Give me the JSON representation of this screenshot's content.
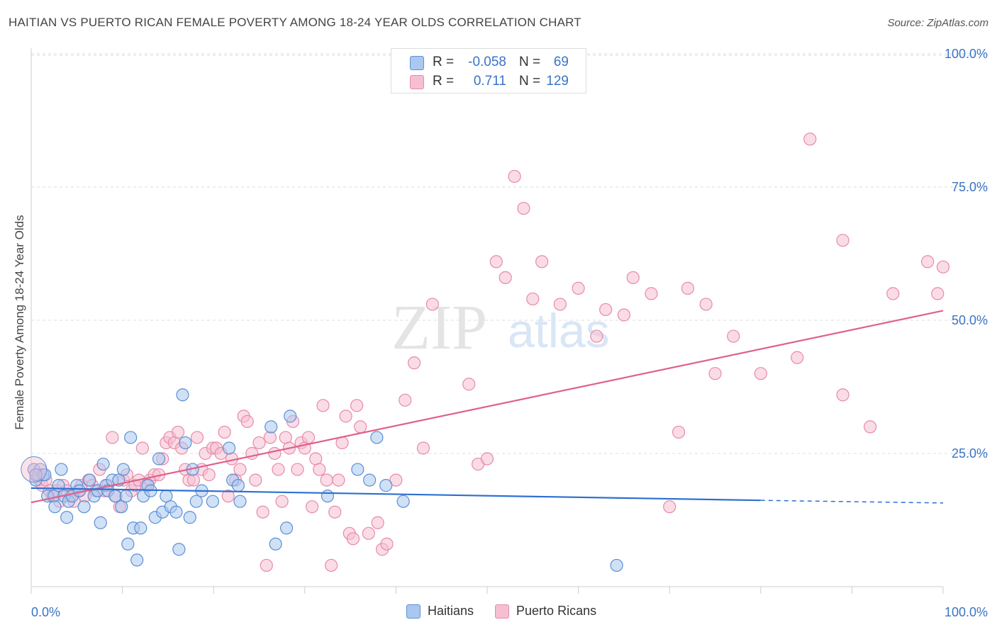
{
  "title": "HAITIAN VS PUERTO RICAN FEMALE POVERTY AMONG 18-24 YEAR OLDS CORRELATION CHART",
  "source": "Source: ZipAtlas.com",
  "watermark": {
    "zip": "ZIP",
    "atlas": "atlas"
  },
  "colors": {
    "haitians_fill": "#aac8ef",
    "haitians_stroke": "#5b8fd6",
    "haitians_line": "#2d6fd1",
    "pr_fill": "#f6bfd1",
    "pr_stroke": "#e88aa8",
    "pr_line": "#e0608a",
    "axis_text": "#3a74c4",
    "grid": "#dddddd"
  },
  "legend_top": {
    "rows": [
      {
        "r_label": "R =",
        "r_value": "-0.058",
        "n_label": "N =",
        "n_value": "69"
      },
      {
        "r_label": "R =",
        "r_value": "0.711",
        "n_label": "N =",
        "n_value": "129"
      }
    ]
  },
  "legend_bottom": {
    "haitians": "Haitians",
    "puerto_ricans": "Puerto Ricans"
  },
  "chart_data": {
    "type": "scatter",
    "ylabel": "Female Poverty Among 18-24 Year Olds",
    "xlabel": "",
    "xlim": [
      0,
      100
    ],
    "ylim": [
      0,
      100
    ],
    "x_tick_labels": [
      "0.0%",
      "100.0%"
    ],
    "y_tick_labels": [
      "25.0%",
      "50.0%",
      "75.0%",
      "100.0%"
    ],
    "y_ticks": [
      25,
      50,
      75,
      100
    ],
    "grid": true,
    "series": [
      {
        "name": "Haitians",
        "points": [
          [
            0.3,
            22
          ],
          [
            0.5,
            20
          ],
          [
            0.8,
            21
          ],
          [
            1.0,
            22
          ],
          [
            1.3,
            21
          ],
          [
            1.5,
            21
          ],
          [
            1.8,
            17
          ],
          [
            2.5,
            17
          ],
          [
            2.6,
            15
          ],
          [
            3.0,
            19
          ],
          [
            3.3,
            22
          ],
          [
            3.6,
            17
          ],
          [
            3.9,
            13
          ],
          [
            4.1,
            16
          ],
          [
            4.5,
            17
          ],
          [
            5.0,
            19
          ],
          [
            5.3,
            18
          ],
          [
            5.8,
            15
          ],
          [
            6.4,
            20
          ],
          [
            6.9,
            17
          ],
          [
            7.3,
            18
          ],
          [
            7.6,
            12
          ],
          [
            7.9,
            23
          ],
          [
            8.2,
            19
          ],
          [
            8.4,
            18
          ],
          [
            8.9,
            20
          ],
          [
            9.2,
            17
          ],
          [
            9.6,
            20
          ],
          [
            9.9,
            15
          ],
          [
            10.1,
            22
          ],
          [
            10.4,
            17
          ],
          [
            10.6,
            8
          ],
          [
            10.9,
            28
          ],
          [
            11.2,
            11
          ],
          [
            11.6,
            5
          ],
          [
            12.0,
            11
          ],
          [
            12.3,
            17
          ],
          [
            12.8,
            19
          ],
          [
            13.1,
            18
          ],
          [
            13.6,
            13
          ],
          [
            14.0,
            24
          ],
          [
            14.4,
            14
          ],
          [
            14.8,
            17
          ],
          [
            15.3,
            15
          ],
          [
            15.9,
            14
          ],
          [
            16.2,
            7
          ],
          [
            16.6,
            36
          ],
          [
            16.9,
            27
          ],
          [
            17.4,
            13
          ],
          [
            17.7,
            22
          ],
          [
            18.1,
            16
          ],
          [
            18.7,
            18
          ],
          [
            19.9,
            16
          ],
          [
            21.7,
            26
          ],
          [
            22.1,
            20
          ],
          [
            22.7,
            19
          ],
          [
            22.9,
            16
          ],
          [
            26.3,
            30
          ],
          [
            26.8,
            8
          ],
          [
            28.0,
            11
          ],
          [
            28.4,
            32
          ],
          [
            32.5,
            17
          ],
          [
            35.8,
            22
          ],
          [
            37.1,
            20
          ],
          [
            37.9,
            28
          ],
          [
            38.9,
            19
          ],
          [
            40.8,
            16
          ],
          [
            64.2,
            4
          ],
          [
            0.5,
            21
          ]
        ]
      },
      {
        "name": "Puerto Ricans",
        "points": [
          [
            0.3,
            22
          ],
          [
            0.6,
            21
          ],
          [
            0.9,
            20
          ],
          [
            1.2,
            19
          ],
          [
            1.6,
            20
          ],
          [
            2.0,
            18
          ],
          [
            2.3,
            17
          ],
          [
            2.8,
            18
          ],
          [
            3.1,
            16
          ],
          [
            3.5,
            19
          ],
          [
            3.9,
            18
          ],
          [
            4.3,
            17
          ],
          [
            4.7,
            16
          ],
          [
            5.1,
            18
          ],
          [
            5.5,
            19
          ],
          [
            5.9,
            17
          ],
          [
            6.3,
            20
          ],
          [
            6.7,
            19
          ],
          [
            7.1,
            18
          ],
          [
            7.5,
            22
          ],
          [
            8.0,
            18
          ],
          [
            8.4,
            19
          ],
          [
            8.9,
            28
          ],
          [
            9.3,
            17
          ],
          [
            9.7,
            15
          ],
          [
            10.1,
            20
          ],
          [
            10.5,
            21
          ],
          [
            11.0,
            18
          ],
          [
            11.4,
            19
          ],
          [
            11.8,
            20
          ],
          [
            12.2,
            26
          ],
          [
            12.6,
            19
          ],
          [
            13.0,
            20
          ],
          [
            13.5,
            21
          ],
          [
            14.0,
            21
          ],
          [
            14.4,
            24
          ],
          [
            14.8,
            27
          ],
          [
            15.2,
            28
          ],
          [
            15.7,
            27
          ],
          [
            16.1,
            29
          ],
          [
            16.5,
            26
          ],
          [
            16.9,
            22
          ],
          [
            17.3,
            20
          ],
          [
            17.8,
            20
          ],
          [
            18.2,
            28
          ],
          [
            18.7,
            22
          ],
          [
            19.1,
            25
          ],
          [
            19.5,
            21
          ],
          [
            19.9,
            26
          ],
          [
            20.3,
            26
          ],
          [
            20.8,
            25
          ],
          [
            21.2,
            29
          ],
          [
            21.6,
            17
          ],
          [
            22.0,
            24
          ],
          [
            22.4,
            20
          ],
          [
            22.9,
            22
          ],
          [
            23.3,
            32
          ],
          [
            23.7,
            31
          ],
          [
            24.2,
            25
          ],
          [
            24.6,
            20
          ],
          [
            25.0,
            27
          ],
          [
            25.4,
            14
          ],
          [
            25.8,
            4
          ],
          [
            26.2,
            28
          ],
          [
            26.7,
            25
          ],
          [
            27.1,
            22
          ],
          [
            27.5,
            16
          ],
          [
            27.9,
            28
          ],
          [
            28.3,
            26
          ],
          [
            28.7,
            31
          ],
          [
            29.2,
            22
          ],
          [
            29.6,
            27
          ],
          [
            30.0,
            26
          ],
          [
            30.4,
            28
          ],
          [
            30.8,
            15
          ],
          [
            31.2,
            24
          ],
          [
            31.6,
            22
          ],
          [
            32.0,
            34
          ],
          [
            32.4,
            20
          ],
          [
            32.9,
            4
          ],
          [
            33.3,
            14
          ],
          [
            33.7,
            20
          ],
          [
            34.1,
            27
          ],
          [
            34.5,
            32
          ],
          [
            34.9,
            10
          ],
          [
            35.3,
            9
          ],
          [
            35.7,
            34
          ],
          [
            36.1,
            30
          ],
          [
            37.0,
            10
          ],
          [
            38.0,
            12
          ],
          [
            38.5,
            7
          ],
          [
            39.0,
            8
          ],
          [
            40.0,
            20
          ],
          [
            41.0,
            35
          ],
          [
            42.0,
            42
          ],
          [
            43.0,
            26
          ],
          [
            44.0,
            53
          ],
          [
            48.0,
            38
          ],
          [
            49.0,
            23
          ],
          [
            50.0,
            24
          ],
          [
            51.0,
            61
          ],
          [
            52.0,
            58
          ],
          [
            53.0,
            77
          ],
          [
            54.0,
            71
          ],
          [
            55.0,
            54
          ],
          [
            56.0,
            61
          ],
          [
            58.0,
            53
          ],
          [
            60.0,
            56
          ],
          [
            62.0,
            47
          ],
          [
            63.0,
            52
          ],
          [
            65.0,
            51
          ],
          [
            66.0,
            58
          ],
          [
            68.0,
            55
          ],
          [
            70.0,
            15
          ],
          [
            71.0,
            29
          ],
          [
            72.0,
            56
          ],
          [
            74.0,
            53
          ],
          [
            75.0,
            40
          ],
          [
            77.0,
            47
          ],
          [
            80.0,
            40
          ],
          [
            84.0,
            43
          ],
          [
            89.0,
            36
          ],
          [
            92.0,
            30
          ],
          [
            98.3,
            61
          ],
          [
            85.4,
            84
          ],
          [
            89.0,
            65
          ],
          [
            94.5,
            55
          ],
          [
            100,
            60
          ],
          [
            99.4,
            55
          ]
        ]
      }
    ],
    "trend_lines": [
      {
        "series": "Haitians",
        "x0": 0,
        "y0": 18.5,
        "x1": 80,
        "y1": 16.2,
        "dashed_from": 80,
        "dashed_to": 100,
        "y_end": 15.7
      },
      {
        "series": "Puerto Ricans",
        "x0": 0,
        "y0": 15.8,
        "x1": 100,
        "y1": 51.8
      }
    ],
    "legend_position": "top-center"
  }
}
